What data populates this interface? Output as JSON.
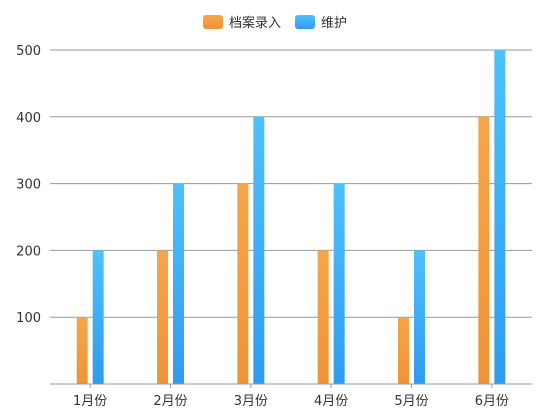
{
  "chart_data": {
    "type": "bar",
    "categories": [
      "1月份",
      "2月份",
      "3月份",
      "4月份",
      "5月份",
      "6月份"
    ],
    "series": [
      {
        "name": "档案录入",
        "values": [
          100,
          200,
          300,
          200,
          100,
          400
        ],
        "color_top": "#f6a54a",
        "color_bottom": "#ef9437"
      },
      {
        "name": "维护",
        "values": [
          200,
          300,
          400,
          300,
          200,
          500
        ],
        "color_top": "#4ec1fb",
        "color_bottom": "#2e9cf0"
      }
    ],
    "yticks": [
      100,
      200,
      300,
      400,
      500
    ],
    "ylim": [
      0,
      500
    ],
    "grid": true,
    "legend_position": "top-center"
  }
}
